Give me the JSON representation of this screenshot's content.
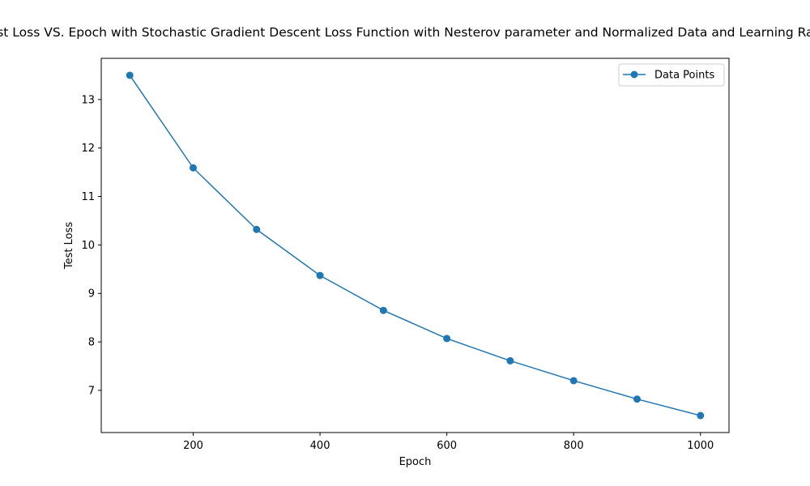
{
  "chart_data": {
    "type": "line",
    "title": "Test Loss VS. Epoch with Stochastic Gradient Descent Loss Function with Nesterov parameter and Normalized Data and Learning Rate",
    "xlabel": "Epoch",
    "ylabel": "Test Loss",
    "x": [
      100,
      200,
      300,
      400,
      500,
      600,
      700,
      800,
      900,
      1000
    ],
    "series": [
      {
        "name": "Data Points",
        "values": [
          13.5,
          11.59,
          10.32,
          9.37,
          8.65,
          8.07,
          7.61,
          7.2,
          6.82,
          6.48
        ],
        "color": "#1f77b4",
        "marker": "circle"
      }
    ],
    "xlim": [
      55,
      1045
    ],
    "ylim": [
      6.13,
      13.85
    ],
    "xticks": [
      200,
      400,
      600,
      800,
      1000
    ],
    "yticks": [
      7,
      8,
      9,
      10,
      11,
      12,
      13
    ],
    "grid": false,
    "legend": "top-right"
  }
}
